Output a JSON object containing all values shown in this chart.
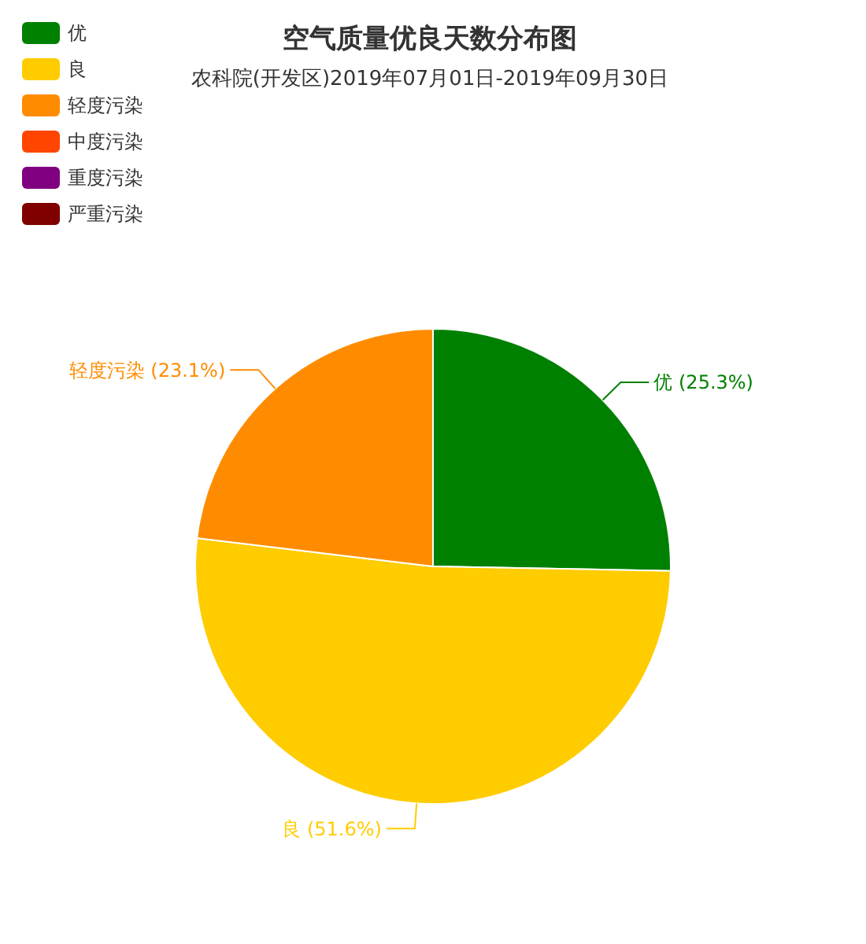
{
  "chart_data": {
    "type": "pie",
    "title": "空气质量优良天数分布图",
    "subtitle": "农科院(开发区)2019年07月01日-2019年09月30日",
    "categories": [
      "优",
      "良",
      "轻度污染",
      "中度污染",
      "重度污染",
      "严重污染"
    ],
    "values": [
      25.3,
      51.6,
      23.1,
      0,
      0,
      0
    ],
    "colors": [
      "#008000",
      "#ffcc00",
      "#ff8c00",
      "#ff4500",
      "#800080",
      "#800000"
    ],
    "value_labels": [
      "(25.3%)",
      "(51.6%)",
      "(23.1%)",
      null,
      null,
      null
    ],
    "legend": "top left"
  }
}
